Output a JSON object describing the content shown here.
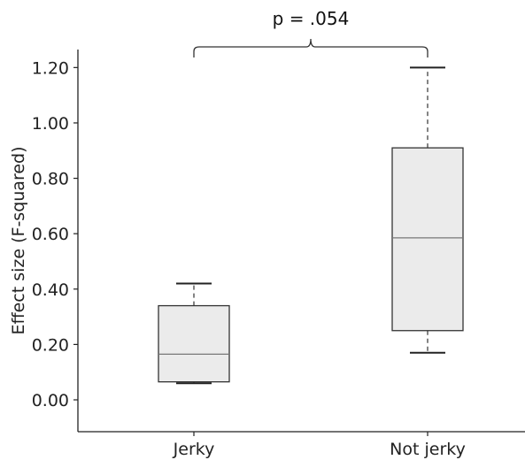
{
  "chart_data": {
    "type": "box",
    "title": "",
    "xlabel": "",
    "ylabel": "Effect size (F-squared)",
    "ylim": [
      -0.115,
      1.265
    ],
    "yticks": [
      0.0,
      0.2,
      0.4,
      0.6,
      0.8,
      1.0,
      1.2
    ],
    "ytick_labels": [
      "0.00",
      "0.20",
      "0.40",
      "0.60",
      "0.80",
      "1.00",
      "1.20"
    ],
    "categories": [
      "Jerky",
      "Not jerky"
    ],
    "boxes": [
      {
        "category": "Jerky",
        "whisker_low": 0.06,
        "q1": 0.065,
        "median": 0.165,
        "q3": 0.34,
        "whisker_high": 0.42
      },
      {
        "category": "Not jerky",
        "whisker_low": 0.17,
        "q1": 0.25,
        "median": 0.585,
        "q3": 0.91,
        "whisker_high": 1.2
      }
    ],
    "annotation": {
      "text": "p = .054",
      "between": [
        "Jerky",
        "Not jerky"
      ]
    },
    "colors": {
      "box_fill": "#ebebeb",
      "box_edge": "#333333",
      "median_line": "#777777"
    },
    "grid": false
  }
}
